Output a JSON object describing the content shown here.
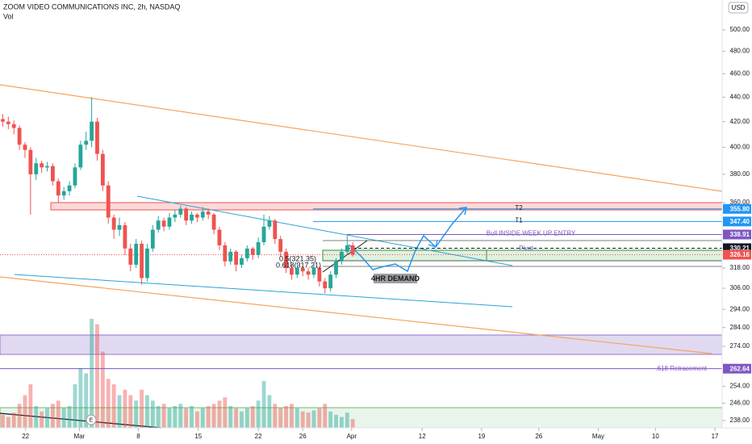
{
  "chart_data": {
    "type": "candlestick",
    "title": "ZOOM VIDEO COMMUNICATIONS INC, 2h, NASDAQ",
    "subtitle": "Vol",
    "currency": "USD",
    "log": true,
    "ylim": [
      234.7,
      529.2
    ],
    "yticks": [
      {
        "value": 500,
        "label": "500.00"
      },
      {
        "value": 480,
        "label": "480.00"
      },
      {
        "value": 460,
        "label": "460.00"
      },
      {
        "value": 440,
        "label": "440.00"
      },
      {
        "value": 420,
        "label": "420.00"
      },
      {
        "value": 400,
        "label": "400.00"
      },
      {
        "value": 380,
        "label": "380.00"
      },
      {
        "value": 360,
        "label": "360.00"
      },
      {
        "value": 318,
        "label": "318.00"
      },
      {
        "value": 306,
        "label": "306.00"
      },
      {
        "value": 294,
        "label": "294.00"
      },
      {
        "value": 284,
        "label": "284.00"
      },
      {
        "value": 274,
        "label": "274.00"
      },
      {
        "value": 254,
        "label": "254.00"
      },
      {
        "value": 246,
        "label": "246.00"
      },
      {
        "value": 238,
        "label": "238.00"
      }
    ],
    "xlim": [
      -0.5,
      129.5
    ],
    "xticks": [
      {
        "value": 4.1,
        "label": "22"
      },
      {
        "value": 13.8,
        "label": "Mar"
      },
      {
        "value": 24.4,
        "label": "8"
      },
      {
        "value": 35.2,
        "label": "15"
      },
      {
        "value": 46,
        "label": "22"
      },
      {
        "value": 54,
        "label": "26"
      },
      {
        "value": 62.8,
        "label": "Apr"
      },
      {
        "value": 75.5,
        "label": "12"
      },
      {
        "value": 86.2,
        "label": "19"
      },
      {
        "value": 96.5,
        "label": "26"
      },
      {
        "value": 107.2,
        "label": "May"
      },
      {
        "value": 117.5,
        "label": "10"
      },
      {
        "value": 128.2,
        "label": "17"
      }
    ],
    "up_color": "#26a69a",
    "down_color": "#ef5350",
    "open": [
      422,
      420,
      418,
      415,
      402,
      398,
      380,
      388,
      385,
      386,
      375,
      365,
      368,
      372,
      385,
      402,
      405,
      420,
      395,
      372,
      350,
      342,
      345,
      330,
      320,
      333,
      312,
      330,
      342,
      348,
      344,
      350,
      352,
      356,
      348,
      352,
      350,
      354,
      352,
      342,
      332,
      322,
      328,
      320,
      324,
      330,
      326,
      334,
      344,
      348,
      336,
      328,
      318,
      314,
      318,
      316,
      314,
      318,
      310,
      306,
      314,
      322,
      328,
      332
    ],
    "high": [
      426,
      424,
      421,
      417,
      404,
      400,
      392,
      390,
      389,
      388,
      377,
      371,
      375,
      388,
      405,
      412,
      440,
      423,
      398,
      375,
      352,
      350,
      347,
      333,
      336,
      335,
      333,
      345,
      351,
      350,
      353,
      355,
      358,
      357,
      354,
      353,
      357,
      356,
      353,
      344,
      334,
      330,
      329,
      326,
      332,
      331,
      337,
      352,
      351,
      349,
      338,
      330,
      320,
      321,
      319,
      318,
      320,
      319,
      312,
      316,
      324,
      330,
      338,
      334
    ],
    "low": [
      416,
      414,
      410,
      398,
      392,
      352,
      376,
      381,
      382,
      372,
      360,
      362,
      365,
      370,
      383,
      398,
      400,
      390,
      368,
      346,
      336,
      338,
      326,
      316,
      318,
      308,
      310,
      328,
      340,
      341,
      342,
      347,
      350,
      345,
      346,
      347,
      348,
      349,
      339,
      329,
      319,
      320,
      316,
      318,
      322,
      323,
      324,
      332,
      342,
      333,
      325,
      315,
      311,
      312,
      313,
      311,
      312,
      307,
      303,
      304,
      312,
      320,
      326,
      325
    ],
    "close": [
      420,
      418,
      415,
      402,
      398,
      380,
      388,
      385,
      386,
      375,
      365,
      368,
      372,
      385,
      402,
      405,
      420,
      395,
      372,
      350,
      342,
      345,
      330,
      320,
      333,
      312,
      330,
      342,
      348,
      344,
      350,
      352,
      356,
      348,
      352,
      350,
      354,
      352,
      342,
      332,
      322,
      328,
      320,
      324,
      330,
      326,
      334,
      344,
      348,
      336,
      328,
      318,
      314,
      318,
      316,
      314,
      318,
      310,
      306,
      314,
      322,
      328,
      332,
      326.16
    ],
    "volume": [
      12,
      10,
      14,
      22,
      30,
      40,
      20,
      15,
      18,
      22,
      25,
      18,
      20,
      40,
      55,
      50,
      100,
      95,
      70,
      45,
      40,
      30,
      35,
      30,
      25,
      35,
      30,
      25,
      20,
      22,
      18,
      20,
      22,
      18,
      20,
      15,
      18,
      20,
      22,
      25,
      28,
      20,
      18,
      15,
      18,
      20,
      25,
      43,
      30,
      22,
      18,
      20,
      22,
      18,
      15,
      14,
      16,
      18,
      22,
      15,
      12,
      10,
      14,
      8
    ],
    "levels": [
      {
        "value": 355.8,
        "label": "355.80",
        "color": "#2196f3",
        "name": "T2"
      },
      {
        "value": 347.4,
        "label": "347.40",
        "color": "#2196f3",
        "name": "T1"
      },
      {
        "value": 338.91,
        "label": "338.91",
        "color": "#7e57c2",
        "name": "Bull INSIDE WEEK UP ENTRY"
      },
      {
        "value": 330.21,
        "label": "330.21",
        "color": "#131722",
        "name": "Pivot"
      },
      {
        "value": 326.16,
        "label": "326.16",
        "color": "#ef5350"
      },
      {
        "value": 262.64,
        "label": "262.64",
        "color": "#7e57c2",
        "name": ".618 Retracement"
      }
    ],
    "annotations": {
      "fib_half": "0.5(321.35)",
      "fib_618": "0.618(317.21)",
      "demand": "4HR DEMAND",
      "earnings": "E"
    }
  }
}
